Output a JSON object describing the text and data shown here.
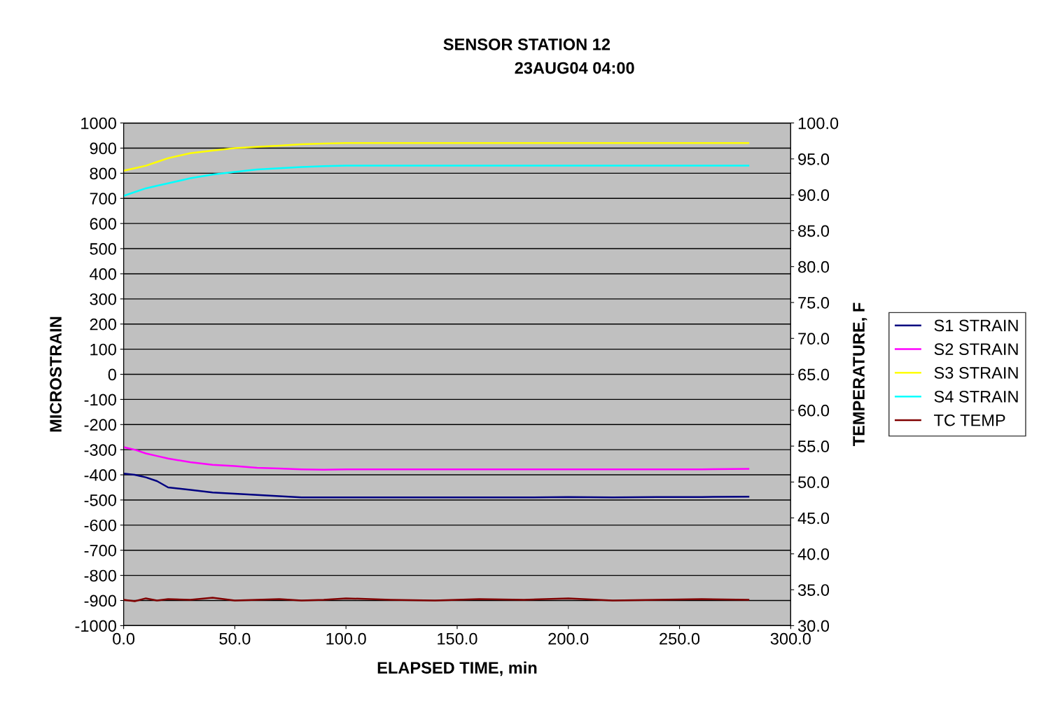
{
  "chart_data": {
    "type": "line",
    "title": "SENSOR STATION 12",
    "subtitle": "23AUG04 04:00",
    "xlabel": "ELAPSED TIME, min",
    "ylabel": "MICROSTRAIN",
    "y2label": "TEMPERATURE, F",
    "xlim": [
      0,
      300
    ],
    "xticks": [
      {
        "value": 0,
        "label": "0.0"
      },
      {
        "value": 50,
        "label": "50.0"
      },
      {
        "value": 100,
        "label": "100.0"
      },
      {
        "value": 150,
        "label": "150.0"
      },
      {
        "value": 200,
        "label": "200.0"
      },
      {
        "value": 250,
        "label": "250.0"
      },
      {
        "value": 300,
        "label": "300.0"
      }
    ],
    "ylim": [
      -1000,
      1000
    ],
    "yticks": [
      -1000,
      -900,
      -800,
      -700,
      -600,
      -500,
      -400,
      -300,
      -200,
      -100,
      0,
      100,
      200,
      300,
      400,
      500,
      600,
      700,
      800,
      900,
      1000
    ],
    "y2lim": [
      30,
      100
    ],
    "y2ticks": [
      {
        "value": 30,
        "label": "30.0"
      },
      {
        "value": 35,
        "label": "35.0"
      },
      {
        "value": 40,
        "label": "40.0"
      },
      {
        "value": 45,
        "label": "45.0"
      },
      {
        "value": 50,
        "label": "50.0"
      },
      {
        "value": 55,
        "label": "55.0"
      },
      {
        "value": 60,
        "label": "60.0"
      },
      {
        "value": 65,
        "label": "65.0"
      },
      {
        "value": 70,
        "label": "70.0"
      },
      {
        "value": 75,
        "label": "75.0"
      },
      {
        "value": 80,
        "label": "80.0"
      },
      {
        "value": 85,
        "label": "85.0"
      },
      {
        "value": 90,
        "label": "90.0"
      },
      {
        "value": 95,
        "label": "95.0"
      },
      {
        "value": 100,
        "label": "100.0"
      }
    ],
    "grid": "y",
    "legend": "right",
    "marker": "none",
    "line_style": "solid",
    "x": [
      0,
      5,
      10,
      15,
      20,
      30,
      40,
      50,
      60,
      70,
      80,
      90,
      100,
      120,
      140,
      160,
      180,
      200,
      220,
      240,
      260,
      281
    ],
    "series": [
      {
        "name": "S1 STRAIN",
        "color": "#000080",
        "values": [
          -395,
          -400,
          -410,
          -425,
          -450,
          -460,
          -470,
          -475,
          -480,
          -485,
          -490,
          -490,
          -490,
          -490,
          -490,
          -490,
          -490,
          -488,
          -490,
          -488,
          -488,
          -487
        ]
      },
      {
        "name": "S2 STRAIN",
        "color": "#ff00ff",
        "values": [
          -290,
          -300,
          -315,
          -325,
          -335,
          -350,
          -360,
          -365,
          -372,
          -375,
          -378,
          -380,
          -378,
          -378,
          -378,
          -378,
          -378,
          -378,
          -378,
          -378,
          -378,
          -376
        ]
      },
      {
        "name": "S3 STRAIN",
        "color": "#ffff00",
        "values": [
          810,
          820,
          830,
          845,
          860,
          880,
          890,
          900,
          905,
          910,
          915,
          918,
          920,
          920,
          920,
          920,
          920,
          920,
          920,
          920,
          920,
          920
        ]
      },
      {
        "name": "S4 STRAIN",
        "color": "#00ffff",
        "values": [
          710,
          725,
          740,
          750,
          760,
          780,
          795,
          805,
          815,
          820,
          825,
          828,
          830,
          830,
          830,
          830,
          830,
          830,
          830,
          830,
          830,
          830
        ]
      },
      {
        "name": "TC TEMP",
        "color": "#800000",
        "axis": "y2",
        "values": [
          33.6,
          33.4,
          33.8,
          33.5,
          33.7,
          33.6,
          33.9,
          33.5,
          33.6,
          33.7,
          33.5,
          33.6,
          33.8,
          33.6,
          33.5,
          33.7,
          33.6,
          33.8,
          33.5,
          33.6,
          33.7,
          33.6
        ]
      }
    ]
  }
}
